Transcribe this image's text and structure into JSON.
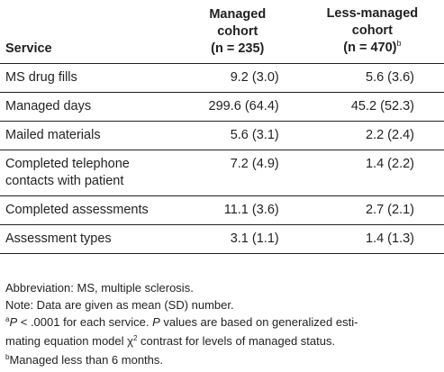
{
  "table": {
    "headers": {
      "service": "Service",
      "managed_line1": "Managed",
      "managed_line2": "cohort",
      "managed_n": "(n = 235)",
      "less_line1": "Less-managed",
      "less_line2": "cohort",
      "less_n": "(n = 470)",
      "less_n_sup": "b"
    },
    "rows": [
      {
        "service": "MS drug fills",
        "managed": "9.2 (3.0)",
        "less": "5.6 (3.6)"
      },
      {
        "service": "Managed days",
        "managed": "299.6 (64.4)",
        "less": "45.2 (52.3)"
      },
      {
        "service": "Mailed materials",
        "managed": "5.6 (3.1)",
        "less": "2.2 (2.4)"
      },
      {
        "service_line1": "Completed telephone",
        "service_line2": "contacts with patient",
        "managed": "7.2 (4.9)",
        "less": "1.4 (2.2)"
      },
      {
        "service": "Completed assessments",
        "managed": "11.1 (3.6)",
        "less": "2.7 (2.1)"
      },
      {
        "service": "Assessment types",
        "managed": "3.1 (1.1)",
        "less": "1.4 (1.3)"
      }
    ]
  },
  "footnotes": {
    "abbreviation": "Abbreviation: MS, multiple sclerosis.",
    "note": "Note: Data are given as mean (SD) number.",
    "a_marker": "a",
    "a_P1": "P",
    "a_text1": " < .0001 for each service. ",
    "a_P2": "P",
    "a_text2": " values are based on generalized esti-",
    "a_line2a": "mating equation model χ",
    "a_chi_sup": "2",
    "a_line2b": " contrast for levels of managed status.",
    "b_marker": "b",
    "b_text": "Managed less than 6 months."
  }
}
